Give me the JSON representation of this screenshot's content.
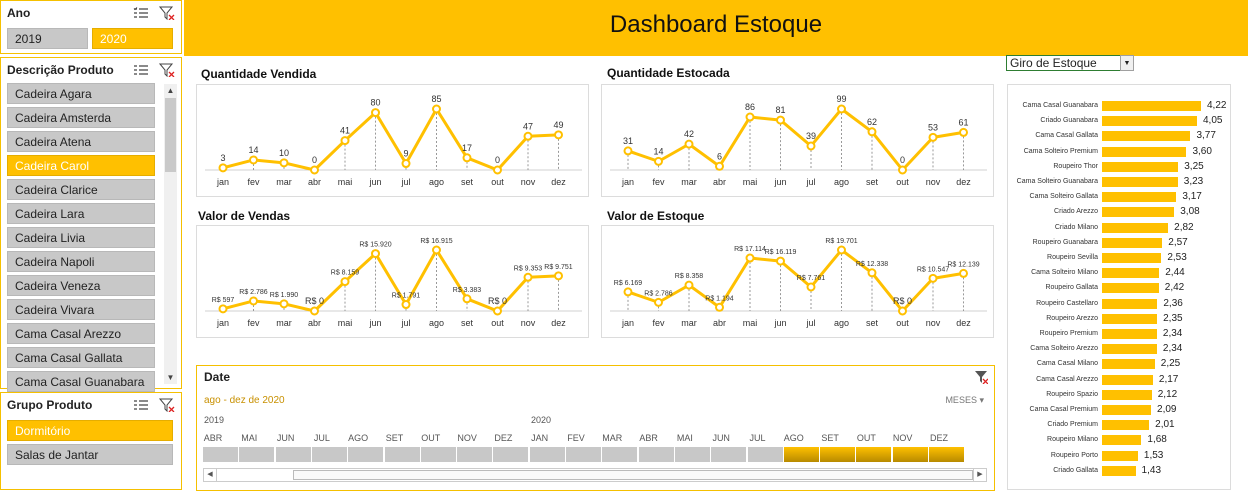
{
  "slicers": {
    "ano": {
      "title": "Ano",
      "items": [
        {
          "label": "2019",
          "selected": false
        },
        {
          "label": "2020",
          "selected": true
        }
      ]
    },
    "descricao": {
      "title": "Descrição Produto",
      "items": [
        {
          "label": "Cadeira Agara",
          "selected": false
        },
        {
          "label": "Cadeira Amsterda",
          "selected": false
        },
        {
          "label": "Cadeira Atena",
          "selected": false
        },
        {
          "label": "Cadeira Carol",
          "selected": true
        },
        {
          "label": "Cadeira Clarice",
          "selected": false
        },
        {
          "label": "Cadeira Lara",
          "selected": false
        },
        {
          "label": "Cadeira Livia",
          "selected": false
        },
        {
          "label": "Cadeira Napoli",
          "selected": false
        },
        {
          "label": "Cadeira Veneza",
          "selected": false
        },
        {
          "label": "Cadeira Vivara",
          "selected": false
        },
        {
          "label": "Cama Casal Arezzo",
          "selected": false
        },
        {
          "label": "Cama Casal Gallata",
          "selected": false
        },
        {
          "label": "Cama Casal Guanabara",
          "selected": false
        }
      ]
    },
    "grupo": {
      "title": "Grupo Produto",
      "items": [
        {
          "label": "Dormitório",
          "selected": true
        },
        {
          "label": "Salas de Jantar",
          "selected": false
        }
      ]
    }
  },
  "header": {
    "title": "Dashboard Estoque"
  },
  "dropdown": {
    "value": "Giro de Estoque"
  },
  "chart_data": [
    {
      "type": "line",
      "title": "Quantidade Vendida",
      "categories": [
        "jan",
        "fev",
        "mar",
        "abr",
        "mai",
        "jun",
        "jul",
        "ago",
        "set",
        "out",
        "nov",
        "dez"
      ],
      "values": [
        3,
        14,
        10,
        0,
        41,
        80,
        9,
        85,
        17,
        0,
        47,
        49
      ],
      "labels": [
        "3",
        "14",
        "10",
        "0",
        "41",
        "80",
        "9",
        "85",
        "17",
        "0",
        "47",
        "49"
      ]
    },
    {
      "type": "line",
      "title": "Quantidade Estocada",
      "categories": [
        "jan",
        "fev",
        "mar",
        "abr",
        "mai",
        "jun",
        "jul",
        "ago",
        "set",
        "out",
        "nov",
        "dez"
      ],
      "values": [
        31,
        14,
        42,
        6,
        86,
        81,
        39,
        99,
        62,
        0,
        53,
        61
      ],
      "labels": [
        "31",
        "14",
        "42",
        "6",
        "86",
        "81",
        "39",
        "99",
        "62",
        "0",
        "53",
        "61"
      ]
    },
    {
      "type": "line",
      "title": "Valor de Vendas",
      "categories": [
        "jan",
        "fev",
        "mar",
        "abr",
        "mai",
        "jun",
        "jul",
        "ago",
        "set",
        "out",
        "nov",
        "dez"
      ],
      "values": [
        597,
        2786,
        1990,
        0,
        8159,
        15920,
        1791,
        16915,
        3383,
        0,
        9353,
        9751
      ],
      "labels": [
        "R$ 597",
        "R$ 2.786",
        "R$ 1.990",
        "R$ 0",
        "R$ 8.159",
        "R$ 15.920",
        "R$ 1.791",
        "R$ 16.915",
        "R$ 3.383",
        "R$ 0",
        "R$ 9.353",
        "R$ 9.751"
      ]
    },
    {
      "type": "line",
      "title": "Valor de Estoque",
      "categories": [
        "jan",
        "fev",
        "mar",
        "abr",
        "mai",
        "jun",
        "jul",
        "ago",
        "set",
        "out",
        "nov",
        "dez"
      ],
      "values": [
        6169,
        2786,
        8358,
        1194,
        17114,
        16119,
        7761,
        19701,
        12338,
        0,
        10547,
        12139
      ],
      "labels": [
        "R$ 6.169",
        "R$ 2.786",
        "R$ 8.358",
        "R$ 1.194",
        "R$ 17.114",
        "R$ 16.119",
        "R$ 7.761",
        "R$ 19.701",
        "R$ 12.338",
        "R$ 0",
        "R$ 10.547",
        "R$ 12.139"
      ]
    },
    {
      "type": "bar",
      "orientation": "horizontal",
      "categories": [
        "Cama Casal Guanabara",
        "Criado Guanabara",
        "Cama Casal Gallata",
        "Cama Solteiro Premium",
        "Roupeiro Thor",
        "Cama Solteiro Guanabara",
        "Cama Solteiro Gallata",
        "Criado Arezzo",
        "Criado Milano",
        "Roupeiro Guanabara",
        "Roupeiro Sevilla",
        "Cama Solteiro Milano",
        "Roupeiro Gallata",
        "Roupeiro Castellaro",
        "Roupeiro Arezzo",
        "Roupeiro Premium",
        "Cama Solteiro Arezzo",
        "Cama Casal Milano",
        "Cama Casal Arezzo",
        "Roupeiro Spazio",
        "Cama Casal Premium",
        "Criado Premium",
        "Roupeiro Milano",
        "Roupeiro Porto",
        "Criado Gallata"
      ],
      "values": [
        4.22,
        4.05,
        3.77,
        3.6,
        3.25,
        3.23,
        3.17,
        3.08,
        2.82,
        2.57,
        2.53,
        2.44,
        2.42,
        2.36,
        2.35,
        2.34,
        2.34,
        2.25,
        2.17,
        2.12,
        2.09,
        2.01,
        1.68,
        1.53,
        1.43
      ],
      "labels": [
        "4,22",
        "4,05",
        "3,77",
        "3,60",
        "3,25",
        "3,23",
        "3,17",
        "3,08",
        "2,82",
        "2,57",
        "2,53",
        "2,44",
        "2,42",
        "2,36",
        "2,35",
        "2,34",
        "2,34",
        "2,25",
        "2,17",
        "2,12",
        "2,09",
        "2,01",
        "1,68",
        "1,53",
        "1,43"
      ]
    }
  ],
  "timeline": {
    "title": "Date",
    "range_label": "ago - dez de 2020",
    "level": "MESES",
    "year_labels": [
      "2019",
      "2020"
    ],
    "months": [
      "ABR",
      "MAI",
      "JUN",
      "JUL",
      "AGO",
      "SET",
      "OUT",
      "NOV",
      "DEZ",
      "JAN",
      "FEV",
      "MAR",
      "ABR",
      "MAI",
      "JUN",
      "JUL",
      "AGO",
      "SET",
      "OUT",
      "NOV",
      "DEZ"
    ],
    "selected_from_index": 16
  }
}
